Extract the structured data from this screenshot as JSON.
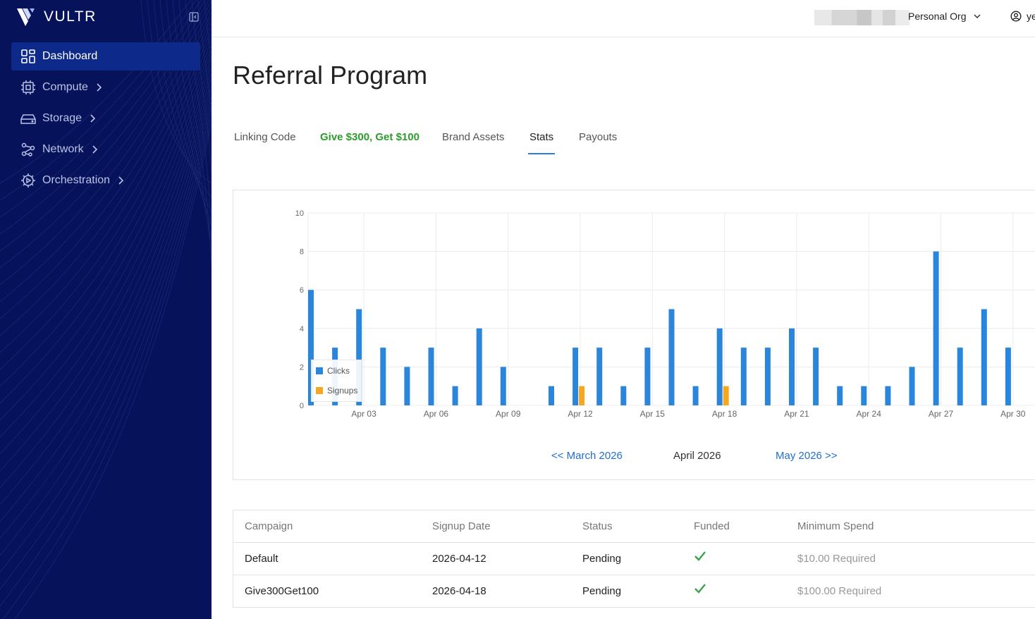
{
  "sidebar": {
    "brand": "VULTR",
    "items": [
      {
        "label": "Dashboard",
        "icon": "dashboard-grid-icon",
        "active": true
      },
      {
        "label": "Compute",
        "icon": "cpu-chip-icon"
      },
      {
        "label": "Storage",
        "icon": "storage-drive-icon"
      },
      {
        "label": "Network",
        "icon": "network-nodes-icon"
      },
      {
        "label": "Orchestration",
        "icon": "orchestration-gear-icon"
      }
    ],
    "colors": {
      "background": "#06125a",
      "active": "#0d2a8a"
    }
  },
  "header": {
    "org_label": "Personal Org",
    "user_label": "ye"
  },
  "page": {
    "title": "Referral Program",
    "tabs": [
      {
        "label": "Linking Code"
      },
      {
        "label": "Give $300, Get $100",
        "promo": true
      },
      {
        "label": "Brand Assets"
      },
      {
        "label": "Stats",
        "active": true
      },
      {
        "label": "Payouts"
      }
    ]
  },
  "chart_data": {
    "type": "bar",
    "title": "",
    "xlabel": "",
    "ylabel": "",
    "ylim": [
      0,
      10
    ],
    "yticks": [
      "0",
      "2",
      "4",
      "6",
      "8",
      "10"
    ],
    "categories": [
      "Apr 01",
      "Apr 02",
      "Apr 03",
      "Apr 04",
      "Apr 05",
      "Apr 06",
      "Apr 07",
      "Apr 08",
      "Apr 09",
      "Apr 10",
      "Apr 11",
      "Apr 12",
      "Apr 13",
      "Apr 14",
      "Apr 15",
      "Apr 16",
      "Apr 17",
      "Apr 18",
      "Apr 19",
      "Apr 20",
      "Apr 21",
      "Apr 22",
      "Apr 23",
      "Apr 24",
      "Apr 25",
      "Apr 26",
      "Apr 27",
      "Apr 28",
      "Apr 29",
      "Apr 30"
    ],
    "tick_labels": [
      "Apr 03",
      "Apr 06",
      "Apr 09",
      "Apr 12",
      "Apr 15",
      "Apr 18",
      "Apr 21",
      "Apr 24",
      "Apr 27",
      "Apr 30"
    ],
    "series": [
      {
        "name": "Clicks",
        "color": "#2a86dc",
        "values": [
          6,
          3,
          5,
          3,
          2,
          3,
          1,
          4,
          2,
          0,
          1,
          3,
          3,
          1,
          3,
          5,
          1,
          4,
          3,
          3,
          4,
          3,
          1,
          1,
          1,
          2,
          8,
          3,
          5,
          3
        ]
      },
      {
        "name": "Signups",
        "color": "#f5a623",
        "values": [
          0,
          0,
          0,
          0,
          0,
          0,
          0,
          0,
          0,
          0,
          0,
          1,
          0,
          0,
          0,
          0,
          0,
          1,
          0,
          0,
          0,
          0,
          0,
          0,
          0,
          0,
          0,
          0,
          0,
          0
        ]
      }
    ],
    "legend": "inside-left",
    "grid": true
  },
  "month_nav": {
    "prev": "<< March 2026",
    "current": "April 2026",
    "next": "May 2026 >>"
  },
  "table": {
    "headers": [
      "Campaign",
      "Signup Date",
      "Status",
      "Funded",
      "Minimum Spend"
    ],
    "rows": [
      {
        "campaign": "Default",
        "date": "2026-04-12",
        "status": "Pending",
        "funded": "check-icon",
        "min_spend": "$10.00 Required"
      },
      {
        "campaign": "Give300Get100",
        "date": "2026-04-18",
        "status": "Pending",
        "funded": "check-icon",
        "min_spend": "$100.00 Required"
      }
    ]
  }
}
